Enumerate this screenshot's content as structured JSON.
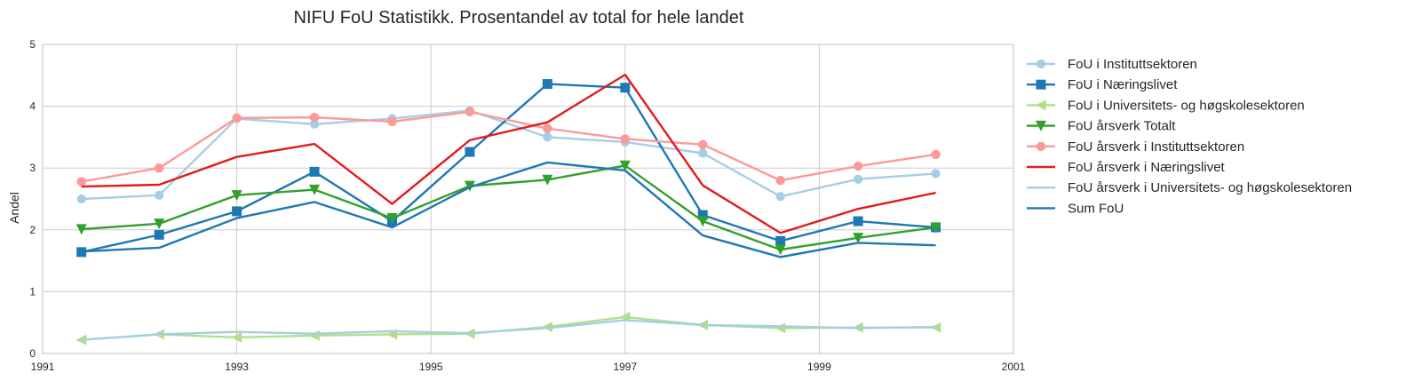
{
  "chart_data": {
    "type": "line",
    "title": "NIFU FoU Statistikk. Prosentandel av total for hele landet",
    "xlabel": "",
    "ylabel": "Andel",
    "xlim": [
      1991,
      2001
    ],
    "ylim": [
      0,
      5
    ],
    "xticks": [
      "1991",
      "1993",
      "1995",
      "1997",
      "1999",
      "2001"
    ],
    "yticks": [
      "0",
      "1",
      "2",
      "3",
      "4",
      "5"
    ],
    "grid": true,
    "legend_position": "outside-right",
    "x": [
      1991.4,
      1992.2,
      1993.0,
      1993.8,
      1994.6,
      1995.4,
      1996.2,
      1997.0,
      1997.8,
      1998.6,
      1999.4,
      2000.2
    ],
    "series": [
      {
        "name": "FoU i Instituttsektoren",
        "color": "#a6cee3",
        "marker": "circle",
        "values": [
          2.5,
          2.56,
          3.8,
          3.71,
          3.8,
          3.93,
          3.5,
          3.42,
          3.24,
          2.54,
          2.82,
          2.91
        ]
      },
      {
        "name": "FoU i Næringslivet",
        "color": "#1f78b4",
        "marker": "square",
        "values": [
          1.64,
          1.92,
          2.3,
          2.94,
          2.14,
          3.26,
          4.36,
          4.3,
          2.24,
          1.82,
          2.14,
          2.04
        ]
      },
      {
        "name": "FoU i Universitets- og høgskolesektoren",
        "color": "#b2df8a",
        "marker": "triangle-left",
        "values": [
          0.22,
          0.31,
          0.26,
          0.29,
          0.31,
          0.32,
          0.43,
          0.59,
          0.46,
          0.41,
          0.42,
          0.42
        ]
      },
      {
        "name": "FoU årsverk Totalt",
        "color": "#33a02c",
        "marker": "triangle-down",
        "values": [
          2.01,
          2.1,
          2.56,
          2.65,
          2.19,
          2.71,
          2.81,
          3.04,
          2.14,
          1.68,
          1.87,
          2.04
        ]
      },
      {
        "name": "FoU årsverk i Instituttsektoren",
        "color": "#fb9a99",
        "marker": "octagon",
        "values": [
          2.78,
          3.0,
          3.81,
          3.82,
          3.75,
          3.91,
          3.64,
          3.47,
          3.38,
          2.8,
          3.03,
          3.22
        ]
      },
      {
        "name": "FoU årsverk i Næringslivet",
        "color": "#e31a1c",
        "marker": "none",
        "values": [
          2.7,
          2.73,
          3.18,
          3.39,
          2.42,
          3.45,
          3.74,
          4.51,
          2.72,
          1.95,
          2.34,
          2.6
        ]
      },
      {
        "name": "FoU årsverk i Universitets- og høgskolesektoren",
        "color": "#a6cee3",
        "marker": "none",
        "values": [
          0.22,
          0.31,
          0.35,
          0.32,
          0.36,
          0.33,
          0.41,
          0.54,
          0.46,
          0.44,
          0.41,
          0.43
        ]
      },
      {
        "name": "Sum FoU",
        "color": "#1f78b4",
        "marker": "none",
        "values": [
          1.65,
          1.71,
          2.19,
          2.45,
          2.04,
          2.69,
          3.09,
          2.96,
          1.91,
          1.56,
          1.79,
          1.75
        ]
      }
    ]
  }
}
